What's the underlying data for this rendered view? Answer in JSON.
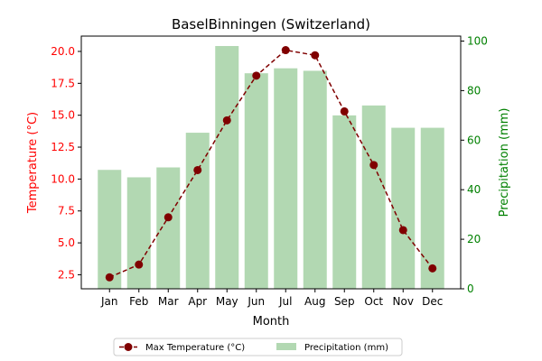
{
  "chart_data": {
    "type": "bar+line",
    "title": "BaselBinningen (Switzerland)",
    "xlabel": "Month",
    "categories": [
      "Jan",
      "Feb",
      "Mar",
      "Apr",
      "May",
      "Jun",
      "Jul",
      "Aug",
      "Sep",
      "Oct",
      "Nov",
      "Dec"
    ],
    "left_axis": {
      "label": "Temperature (°C)",
      "color": "#ff0000",
      "ylim": [
        1.4,
        21.2
      ],
      "ticks": [
        2.5,
        5.0,
        7.5,
        10.0,
        12.5,
        15.0,
        17.5,
        20.0
      ],
      "tick_labels": [
        "2.5",
        "5.0",
        "7.5",
        "10.0",
        "12.5",
        "15.0",
        "17.5",
        "20.0"
      ]
    },
    "right_axis": {
      "label": "Precipitation (mm)",
      "color": "#008000",
      "ylim": [
        0,
        102
      ],
      "ticks": [
        0,
        20,
        40,
        60,
        80,
        100
      ],
      "tick_labels": [
        "0",
        "20",
        "40",
        "60",
        "80",
        "100"
      ]
    },
    "series": [
      {
        "name": "Max Temperature (°C)",
        "kind": "line",
        "axis": "left",
        "color": "#800000",
        "style": "dashed-with-circle-markers",
        "values": [
          2.3,
          3.3,
          7.0,
          10.7,
          14.6,
          18.1,
          20.1,
          19.7,
          15.3,
          11.1,
          6.0,
          3.0
        ]
      },
      {
        "name": "Precipitation (mm)",
        "kind": "bar",
        "axis": "right",
        "color": "#b2d8b2",
        "values": [
          48,
          45,
          49,
          63,
          98,
          87,
          89,
          88,
          70,
          74,
          65,
          65
        ]
      }
    ],
    "legend": {
      "position": "bottom-center"
    },
    "grid": false
  }
}
